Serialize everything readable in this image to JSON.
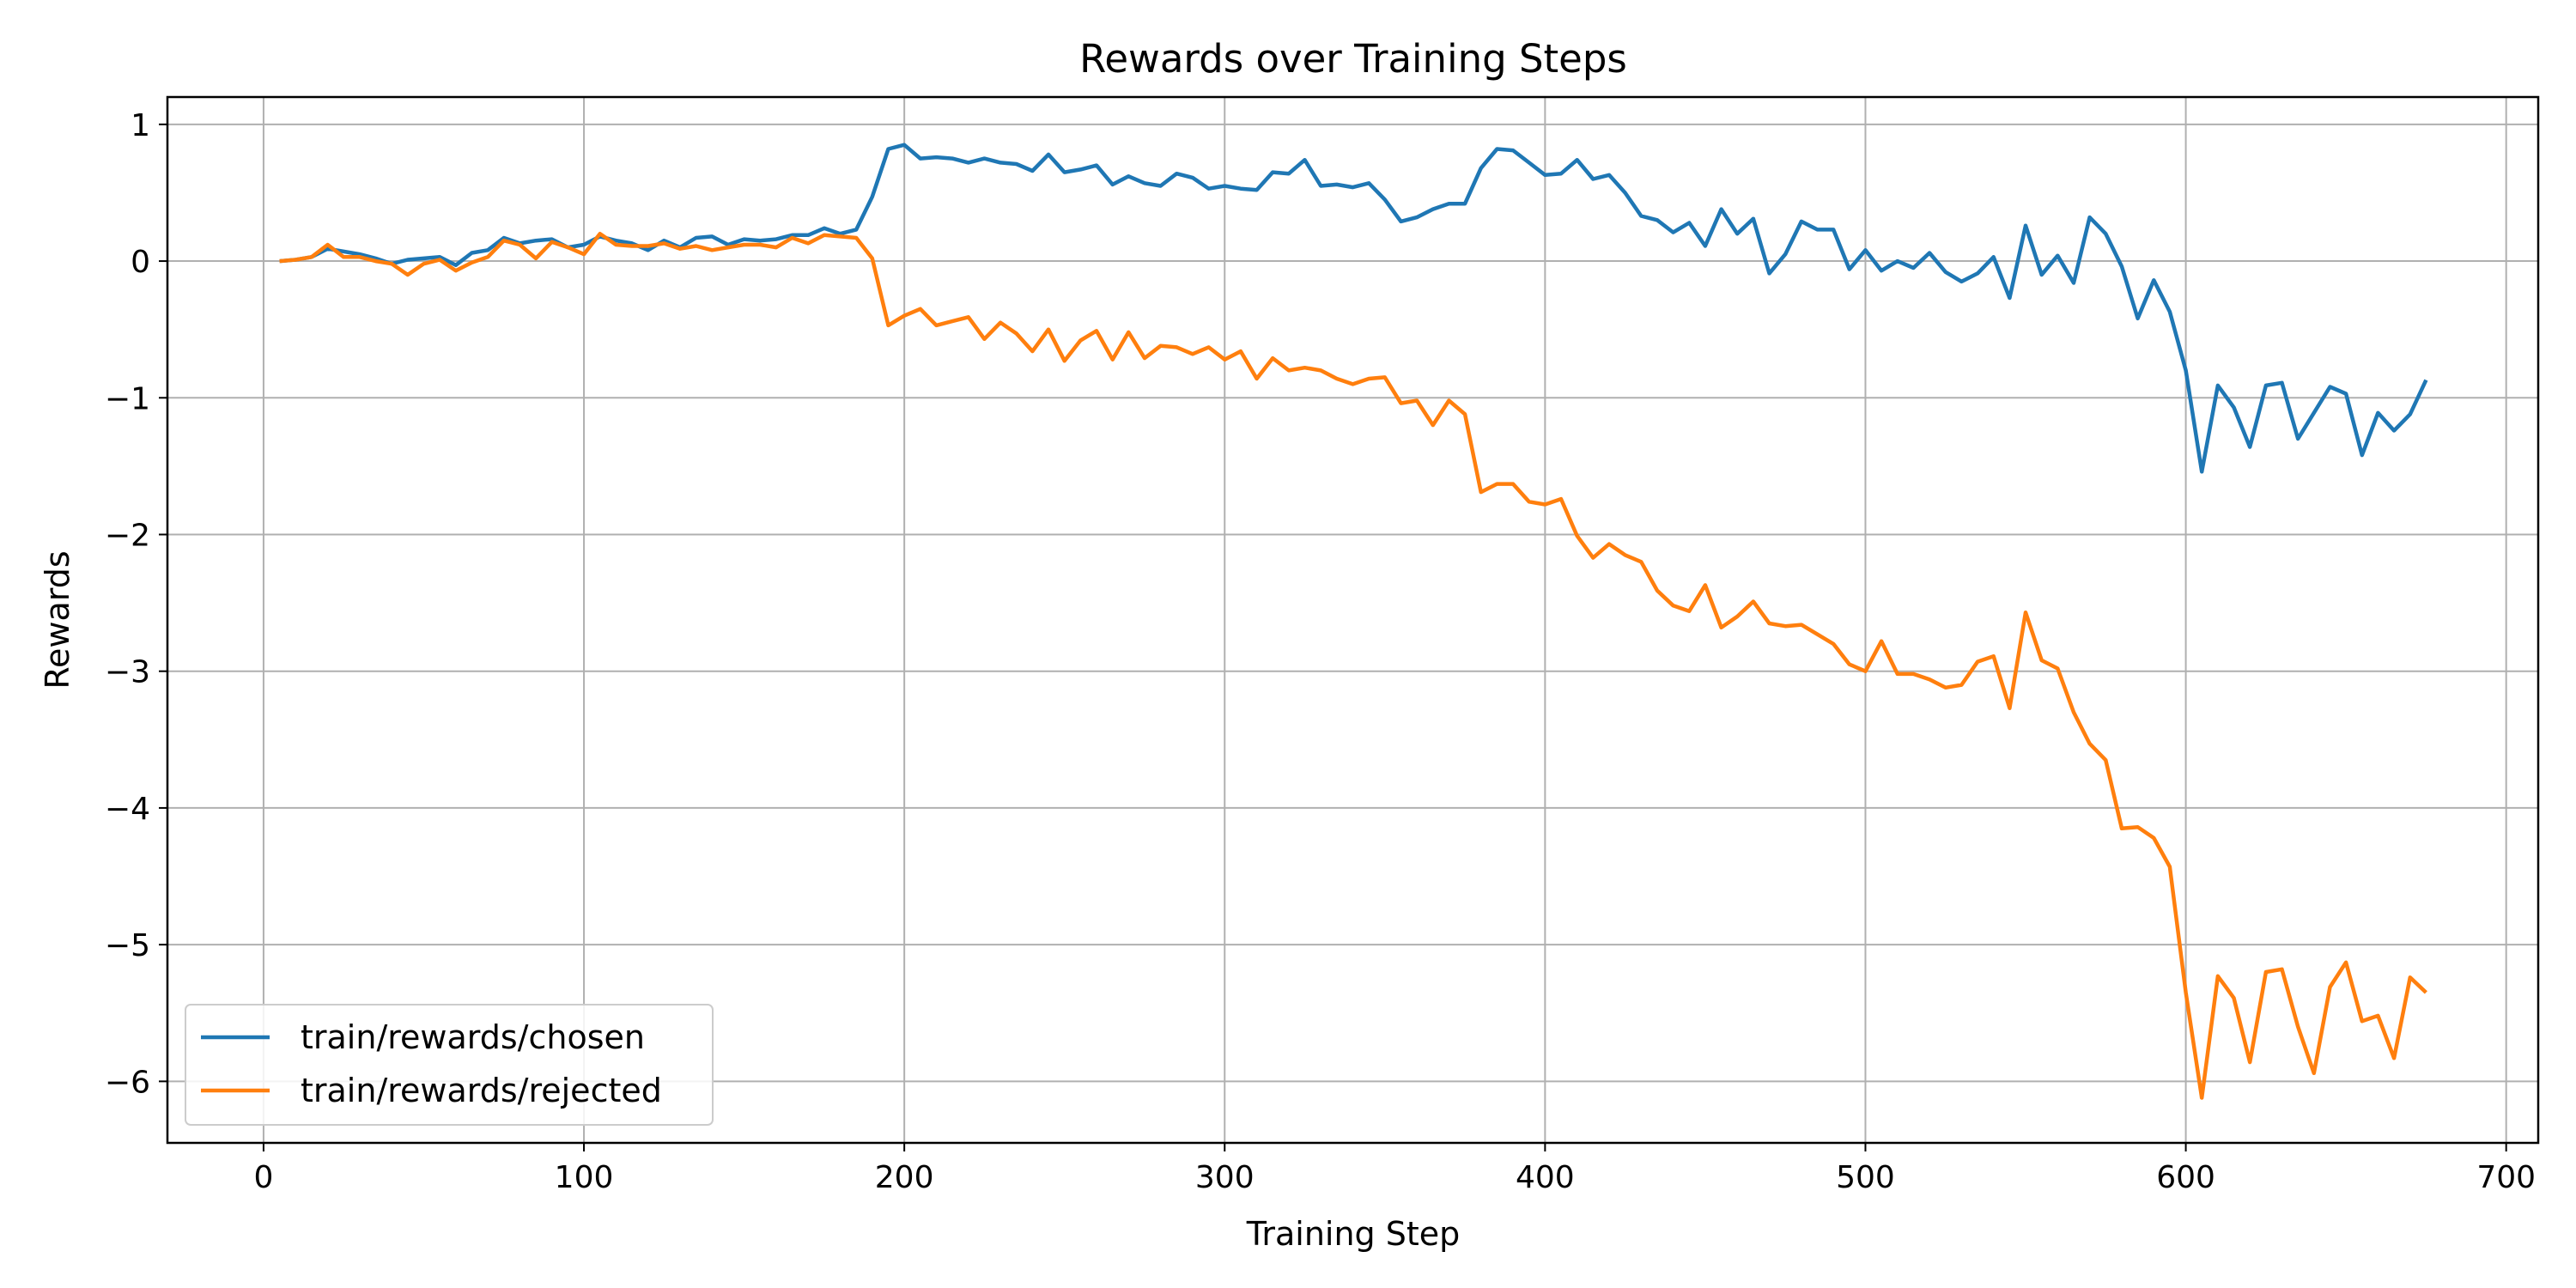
{
  "chart_data": {
    "type": "line",
    "title": "Rewards over Training Steps",
    "xlabel": "Training Step",
    "ylabel": "Rewards",
    "xlim": [
      -30,
      710
    ],
    "ylim": [
      -6.45,
      1.2
    ],
    "xticks": [
      0,
      100,
      200,
      300,
      400,
      500,
      600,
      700
    ],
    "yticks": [
      1,
      0,
      -1,
      -2,
      -3,
      -4,
      -5,
      -6
    ],
    "xtick_labels": [
      "0",
      "100",
      "200",
      "300",
      "400",
      "500",
      "600",
      "700"
    ],
    "ytick_labels": [
      "1",
      "0",
      "−1",
      "−2",
      "−3",
      "−4",
      "−5",
      "−6"
    ],
    "grid": true,
    "legend_position": "lower-left",
    "x": [
      5,
      10,
      15,
      20,
      25,
      30,
      35,
      40,
      45,
      50,
      55,
      60,
      65,
      70,
      75,
      80,
      85,
      90,
      95,
      100,
      105,
      110,
      115,
      120,
      125,
      130,
      135,
      140,
      145,
      150,
      155,
      160,
      165,
      170,
      175,
      180,
      185,
      190,
      195,
      200,
      205,
      210,
      215,
      220,
      225,
      230,
      235,
      240,
      245,
      250,
      255,
      260,
      265,
      270,
      275,
      280,
      285,
      290,
      295,
      300,
      305,
      310,
      315,
      320,
      325,
      330,
      335,
      340,
      345,
      350,
      355,
      360,
      365,
      370,
      375,
      380,
      385,
      390,
      395,
      400,
      405,
      410,
      415,
      420,
      425,
      430,
      435,
      440,
      445,
      450,
      455,
      460,
      465,
      470,
      475,
      480,
      485,
      490,
      495,
      500,
      505,
      510,
      515,
      520,
      525,
      530,
      535,
      540,
      545,
      550,
      555,
      560,
      565,
      570,
      575,
      580,
      585,
      590,
      595,
      600,
      605,
      610,
      615,
      620,
      625,
      630,
      635,
      640,
      645,
      650,
      655,
      660,
      665,
      670,
      675
    ],
    "series": [
      {
        "name": "train/rewards/chosen",
        "color": "#1f77b4",
        "values": [
          0.0,
          0.01,
          0.03,
          0.09,
          0.07,
          0.05,
          0.02,
          -0.02,
          0.01,
          0.02,
          0.03,
          -0.03,
          0.06,
          0.08,
          0.17,
          0.13,
          0.15,
          0.16,
          0.1,
          0.12,
          0.18,
          0.15,
          0.13,
          0.08,
          0.15,
          0.1,
          0.17,
          0.18,
          0.12,
          0.16,
          0.15,
          0.16,
          0.19,
          0.19,
          0.24,
          0.2,
          0.23,
          0.47,
          0.82,
          0.85,
          0.75,
          0.76,
          0.75,
          0.72,
          0.75,
          0.72,
          0.71,
          0.66,
          0.78,
          0.65,
          0.67,
          0.7,
          0.56,
          0.62,
          0.57,
          0.55,
          0.64,
          0.61,
          0.53,
          0.55,
          0.53,
          0.52,
          0.65,
          0.64,
          0.74,
          0.55,
          0.56,
          0.54,
          0.57,
          0.45,
          0.29,
          0.32,
          0.38,
          0.42,
          0.42,
          0.68,
          0.82,
          0.81,
          0.72,
          0.63,
          0.64,
          0.74,
          0.6,
          0.63,
          0.5,
          0.33,
          0.3,
          0.21,
          0.28,
          0.11,
          0.38,
          0.2,
          0.31,
          -0.09,
          0.05,
          0.29,
          0.23,
          0.23,
          -0.06,
          0.08,
          -0.07,
          0.0,
          -0.05,
          0.06,
          -0.08,
          -0.15,
          -0.09,
          0.03,
          -0.27,
          0.26,
          -0.1,
          0.04,
          -0.16,
          0.32,
          0.2,
          -0.04,
          -0.42,
          -0.14,
          -0.37,
          -0.8,
          -1.54,
          -0.91,
          -1.07,
          -1.36,
          -0.91,
          -0.89,
          -1.3,
          -1.11,
          -0.92,
          -0.97,
          -1.42,
          -1.11,
          -1.24,
          -1.12,
          -0.87
        ]
      },
      {
        "name": "train/rewards/rejected",
        "color": "#ff7f0e",
        "values": [
          0.0,
          0.01,
          0.03,
          0.12,
          0.03,
          0.03,
          0.0,
          -0.02,
          -0.1,
          -0.02,
          0.01,
          -0.07,
          -0.01,
          0.03,
          0.15,
          0.12,
          0.02,
          0.14,
          0.1,
          0.05,
          0.2,
          0.12,
          0.11,
          0.11,
          0.13,
          0.09,
          0.11,
          0.08,
          0.1,
          0.12,
          0.12,
          0.1,
          0.17,
          0.13,
          0.19,
          0.18,
          0.17,
          0.02,
          -0.47,
          -0.4,
          -0.35,
          -0.47,
          -0.44,
          -0.41,
          -0.57,
          -0.45,
          -0.53,
          -0.66,
          -0.5,
          -0.73,
          -0.58,
          -0.51,
          -0.72,
          -0.52,
          -0.71,
          -0.62,
          -0.63,
          -0.68,
          -0.63,
          -0.72,
          -0.66,
          -0.86,
          -0.71,
          -0.8,
          -0.78,
          -0.8,
          -0.86,
          -0.9,
          -0.86,
          -0.85,
          -1.04,
          -1.02,
          -1.2,
          -1.02,
          -1.12,
          -1.69,
          -1.63,
          -1.63,
          -1.76,
          -1.78,
          -1.74,
          -2.01,
          -2.17,
          -2.07,
          -2.15,
          -2.2,
          -2.41,
          -2.52,
          -2.56,
          -2.37,
          -2.68,
          -2.6,
          -2.49,
          -2.65,
          -2.67,
          -2.66,
          -2.73,
          -2.8,
          -2.95,
          -3.0,
          -2.78,
          -3.02,
          -3.02,
          -3.06,
          -3.12,
          -3.1,
          -2.93,
          -2.89,
          -3.27,
          -2.57,
          -2.92,
          -2.98,
          -3.3,
          -3.53,
          -3.65,
          -4.15,
          -4.14,
          -4.22,
          -4.43,
          -5.35,
          -6.12,
          -5.23,
          -5.39,
          -5.86,
          -5.2,
          -5.18,
          -5.6,
          -5.94,
          -5.31,
          -5.13,
          -5.56,
          -5.52,
          -5.83,
          -5.24,
          -5.35
        ]
      }
    ]
  }
}
